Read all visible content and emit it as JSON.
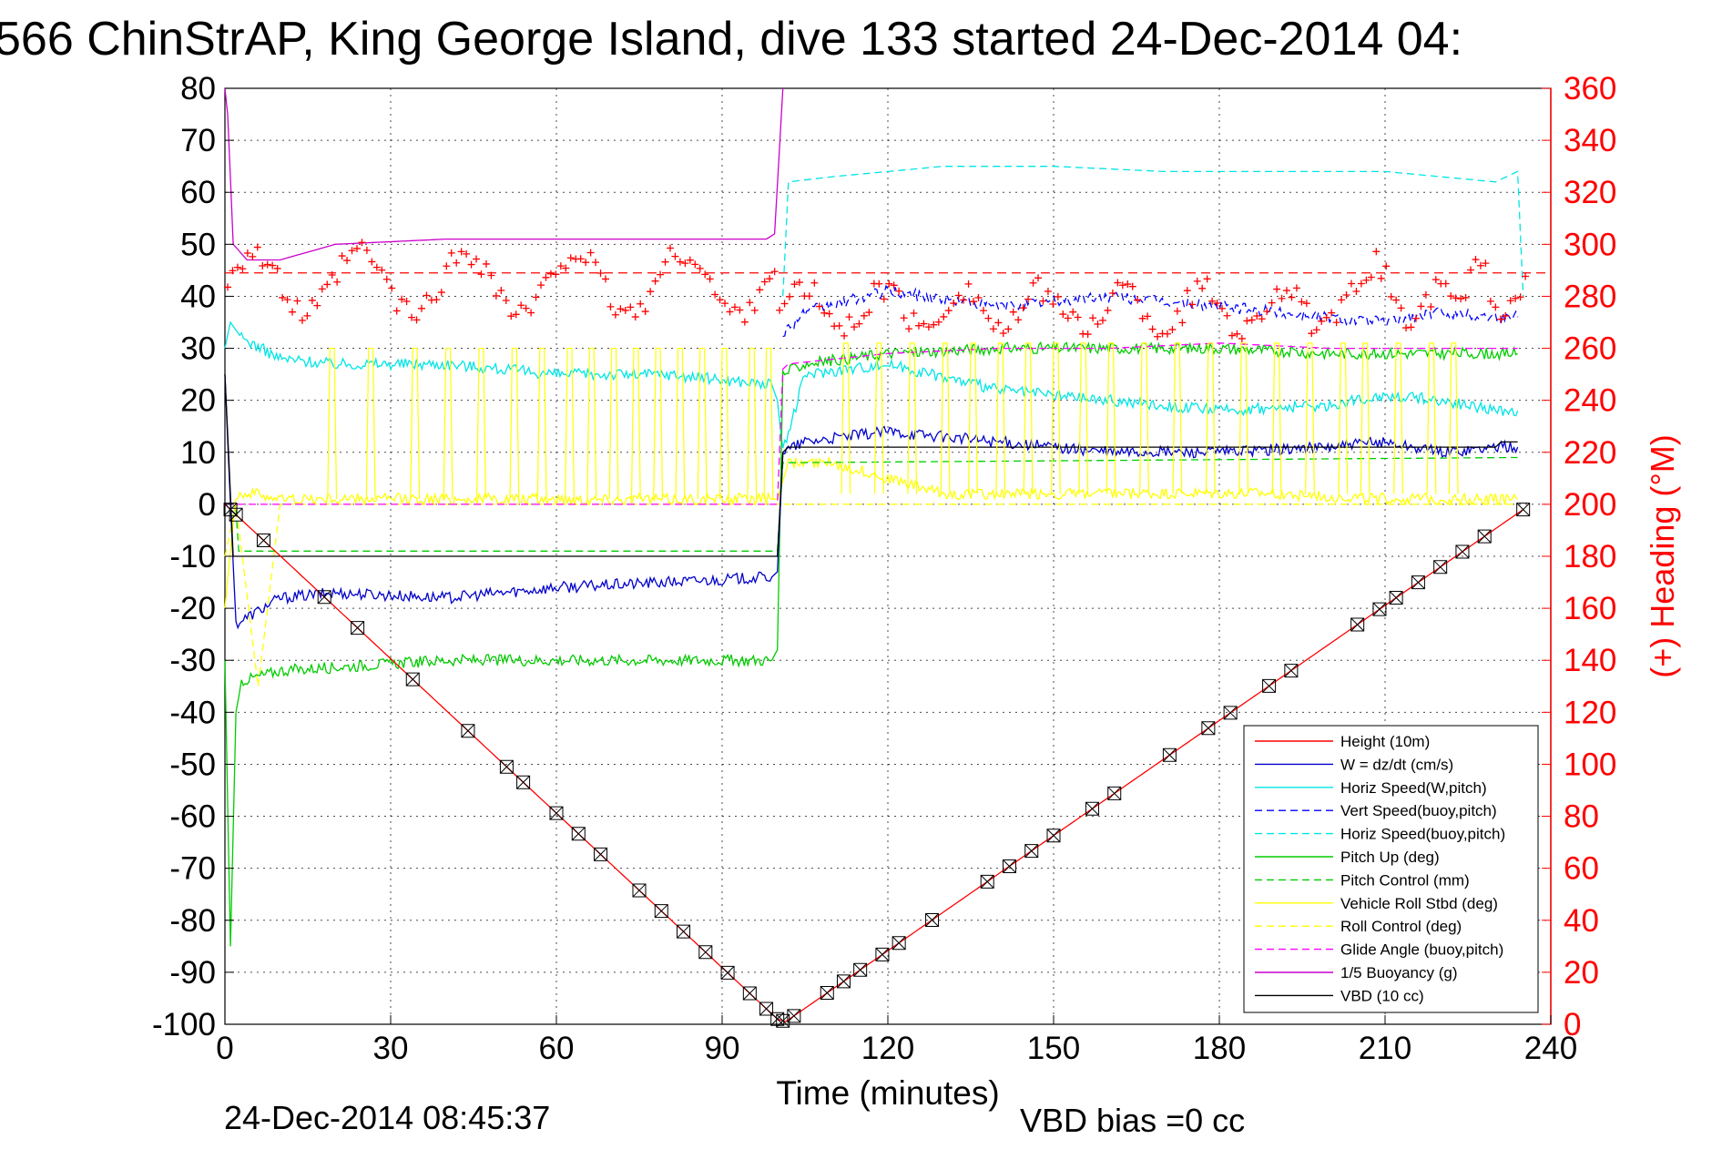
{
  "chart_data": {
    "type": "line",
    "title": "566 ChinStrAP, King George Island, dive 133 started 24-Dec-2014 04:",
    "xlabel": "Time (minutes)",
    "ylabel": "",
    "ylabel_right": "(+) Heading (°M)",
    "xlim": [
      0,
      240
    ],
    "ylim": [
      -100,
      80
    ],
    "ylim_right": [
      0,
      360
    ],
    "x_ticks": [
      "0",
      "30",
      "60",
      "90",
      "120",
      "150",
      "180",
      "210",
      "240"
    ],
    "y_ticks": [
      "80",
      "70",
      "60",
      "50",
      "40",
      "30",
      "20",
      "10",
      "0",
      "-10",
      "-20",
      "-30",
      "-40",
      "-50",
      "-60",
      "-70",
      "-80",
      "-90",
      "-100"
    ],
    "y_right_ticks": [
      "360",
      "340",
      "320",
      "300",
      "280",
      "260",
      "240",
      "220",
      "200",
      "180",
      "160",
      "140",
      "120",
      "100",
      "80",
      "60",
      "40",
      "20",
      "0"
    ],
    "grid": true,
    "legend_position": "bottom-right",
    "footer_left": "24-Dec-2014 08:45:37",
    "footer_right": "VBD bias =0 cc",
    "heading_mean": 289,
    "series": [
      {
        "name": "Height (10m)",
        "color": "#ff0000",
        "style": "solid",
        "x": [
          0,
          1,
          100,
          101.5,
          235
        ],
        "y": [
          0,
          -1,
          -99,
          -99.5,
          -1
        ]
      },
      {
        "name": "W = dz/dt (cm/s)",
        "color": "#0000cc",
        "style": "solid",
        "x": [
          0,
          1,
          2,
          10,
          20,
          40,
          60,
          80,
          99,
          100,
          101,
          105,
          120,
          140,
          160,
          180,
          200,
          210,
          220,
          230,
          234
        ],
        "y": [
          25,
          0,
          -23,
          -18,
          -17,
          -18,
          -16,
          -15,
          -14,
          -13,
          10,
          12,
          14,
          12,
          10,
          10,
          11,
          12,
          10,
          11,
          11
        ]
      },
      {
        "name": "Horiz Speed(W,pitch)",
        "color": "#00e5e5",
        "style": "solid",
        "x": [
          0,
          1,
          3,
          10,
          20,
          40,
          60,
          80,
          99,
          100,
          101,
          105,
          120,
          140,
          160,
          180,
          200,
          210,
          220,
          230,
          234
        ],
        "y": [
          30,
          35,
          32,
          28,
          27,
          27,
          25,
          25,
          23,
          20,
          10,
          25,
          27,
          22,
          20,
          18,
          19,
          21,
          20,
          18,
          18
        ]
      },
      {
        "name": "Vert Speed(buoy,pitch)",
        "color": "#0000ff",
        "style": "dashed",
        "x": [
          101,
          105,
          120,
          140,
          160,
          180,
          200,
          210,
          220,
          230,
          234
        ],
        "y": [
          33,
          37,
          41,
          38,
          40,
          38,
          36,
          35,
          37,
          36,
          36
        ]
      },
      {
        "name": "Horiz Speed(buoy,pitch)",
        "color": "#00e5e5",
        "style": "dashed",
        "x": [
          101,
          102,
          110,
          130,
          150,
          170,
          190,
          210,
          230,
          234,
          235
        ],
        "y": [
          40,
          62,
          63,
          65,
          65,
          64,
          64,
          64,
          62,
          64,
          40
        ]
      },
      {
        "name": "Pitch Up (deg)",
        "color": "#00cc00",
        "style": "solid",
        "x": [
          0,
          1,
          2,
          3,
          10,
          40,
          60,
          80,
          99,
          100,
          101,
          105,
          120,
          140,
          160,
          180,
          200,
          220,
          234
        ],
        "y": [
          -30,
          -85,
          -40,
          -34,
          -32,
          -30,
          -30,
          -30,
          -30,
          -28,
          25,
          27,
          29,
          30,
          30,
          30,
          29,
          29,
          29
        ]
      },
      {
        "name": "Pitch Control (mm)",
        "color": "#00cc00",
        "style": "dashed",
        "x": [
          2,
          2.5,
          99,
          100,
          101,
          102,
          234
        ],
        "y": [
          -1,
          -9,
          -9,
          -9,
          8,
          8,
          9
        ]
      },
      {
        "name": "Vehicle Roll Stbd (deg)",
        "color": "#ffff00",
        "style": "solid",
        "x": [
          0,
          2,
          6,
          10,
          20,
          40,
          60,
          80,
          99,
          100,
          102,
          110,
          130,
          150,
          170,
          190,
          210,
          230,
          234
        ],
        "y": [
          -20,
          2,
          2,
          1,
          1,
          1,
          1,
          1,
          1,
          1,
          8,
          8,
          2,
          2,
          2,
          2,
          1,
          1,
          1
        ]
      },
      {
        "name": "Roll Control (deg)",
        "color": "#ffff00",
        "style": "dashed",
        "x": [
          0,
          2,
          6,
          10,
          30,
          60,
          90,
          100,
          101,
          150,
          234
        ],
        "y": [
          -10,
          0,
          -35,
          0,
          0,
          0,
          0,
          0,
          0,
          0,
          0
        ]
      },
      {
        "name": "Glide Angle (buoy,pitch)",
        "color": "#ff00ff",
        "style": "dashed",
        "x": [
          0,
          100,
          101,
          102,
          120,
          140,
          160,
          180,
          200,
          220,
          234
        ],
        "y": [
          0,
          0,
          26,
          27,
          29,
          30,
          30,
          31,
          30,
          30,
          30
        ]
      },
      {
        "name": "1/5 Buoyancy (g)",
        "color": "#cc00cc",
        "style": "solid",
        "x": [
          0,
          0.5,
          1.5,
          4,
          10,
          20,
          40,
          60,
          80,
          98,
          99.5,
          101
        ],
        "y": [
          80,
          75,
          50,
          47,
          47,
          50,
          51,
          51,
          51,
          51,
          52,
          80
        ]
      },
      {
        "name": "VBD (10 cc)",
        "color": "#000000",
        "style": "solid",
        "x": [
          0,
          1.5,
          98,
          99,
          100,
          101,
          102,
          230,
          231,
          234
        ],
        "y": [
          25,
          -10,
          -10,
          -10,
          -10,
          10,
          11,
          11,
          12,
          12
        ]
      }
    ]
  }
}
